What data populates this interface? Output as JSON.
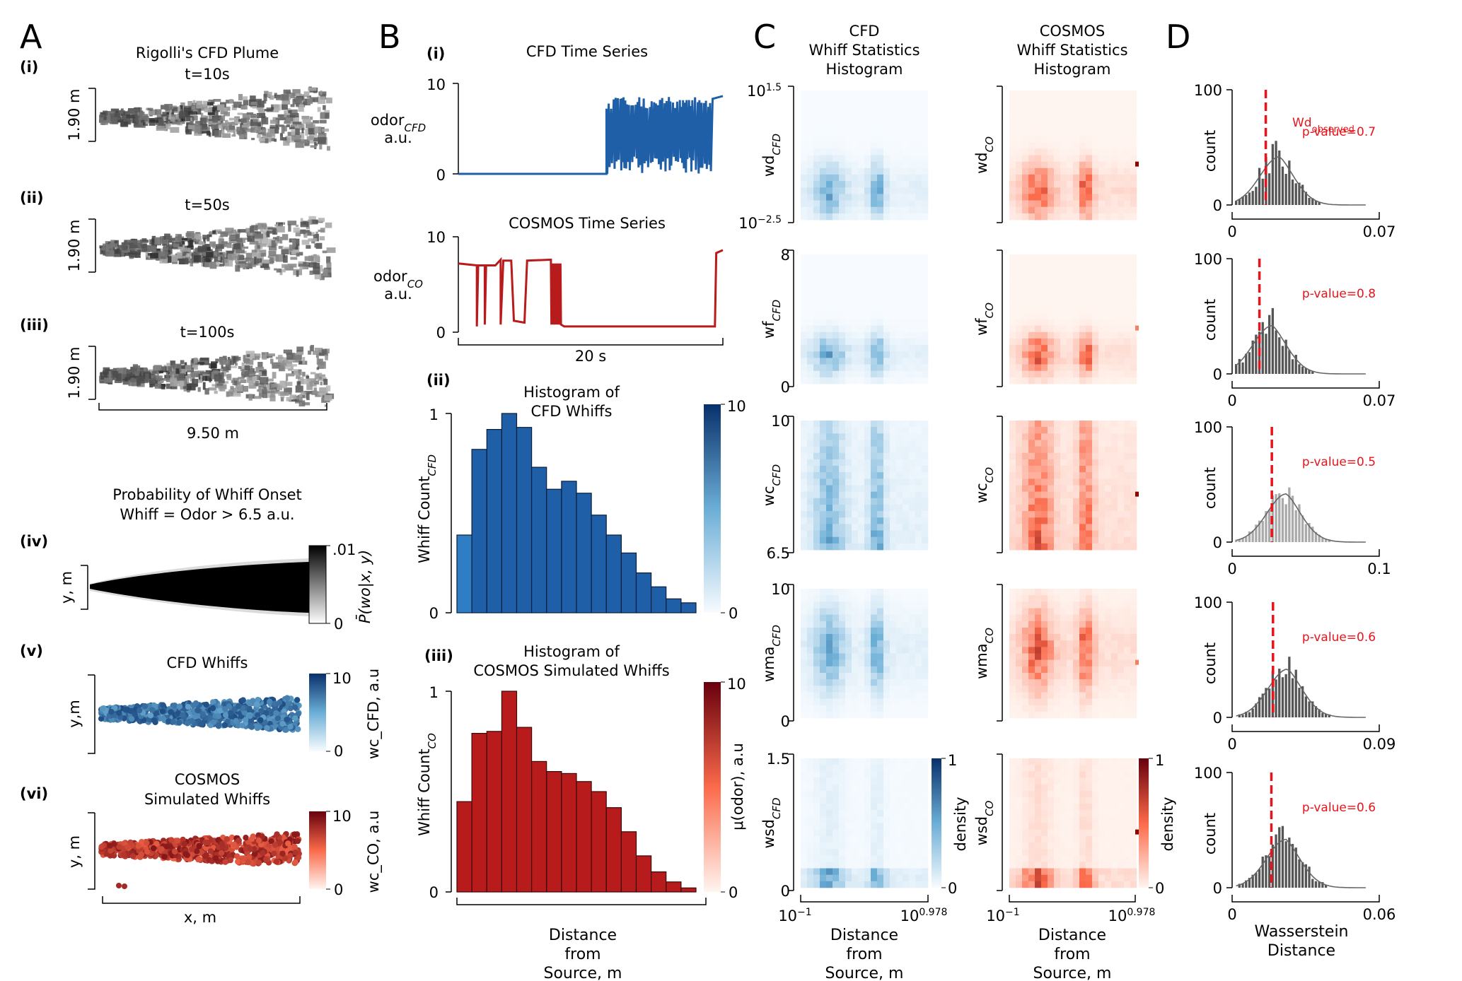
{
  "panel_labels": {
    "A": "A",
    "B": "B",
    "C": "C",
    "D": "D"
  },
  "sub_labels": {
    "i": "(i)",
    "ii": "(ii)",
    "iii": "(iii)",
    "iv": "(iv)",
    "v": "(v)",
    "vi": "(vi)"
  },
  "panel_a": {
    "title": "Rigolli's CFD Plume",
    "snapshots": [
      {
        "label": "(i)",
        "time": "t=10s",
        "ylabel": "1.90 m"
      },
      {
        "label": "(ii)",
        "time": "t=50s",
        "ylabel": "1.90 m"
      },
      {
        "label": "(iii)",
        "time": "t=100s",
        "ylabel": "1.90 m"
      }
    ],
    "x_span": "9.50 m",
    "onset_title_1": "Probability of Whiff Onset",
    "onset_title_2": "Whiff = Odor > 6.5 a.u.",
    "onset_ylabel": "y, m",
    "onset_cbar_max": ".01",
    "onset_cbar_min": "0",
    "onset_cbar_label": "P̄(wo|x, y)",
    "cfd_whiffs_title": "CFD Whiffs",
    "cfd_whiffs_ylabel": "y,m",
    "cfd_cbar_max": "10",
    "cfd_cbar_min": "0",
    "cfd_cbar_label": "wc_CFD, a.u",
    "cosmos_whiffs_title_1": "COSMOS",
    "cosmos_whiffs_title_2": "Simulated Whiffs",
    "cosmos_whiffs_ylabel": "y, m",
    "cosmos_cbar_max": "10",
    "cosmos_cbar_min": "0",
    "cosmos_cbar_label": "wc_CO, a.u",
    "xlabel": "x, m"
  },
  "panel_b": {
    "cfd_ts_title": "CFD Time Series",
    "cfd_ts_ylabel_1": "odor_CFD",
    "cfd_ts_ylabel_2": "a.u.",
    "cfd_ts_ymax": "10",
    "cfd_ts_ymin": "0",
    "cosmos_ts_title": "COSMOS Time Series",
    "cosmos_ts_ylabel_1": "odor_CO",
    "cosmos_ts_ylabel_2": "a.u.",
    "cosmos_ts_ymax": "10",
    "cosmos_ts_ymin": "0",
    "ts_xlabel": "20 s",
    "hist_cfd_title_1": "Histogram of",
    "hist_cfd_title_2": "CFD Whiffs",
    "hist_cfd_ylabel": "Whiff Count_CFD",
    "hist_cfd_cbar_max": "10",
    "hist_cfd_cbar_min": "0",
    "hist_co_title_1": "Histogram of",
    "hist_co_title_2": "COSMOS Simulated Whiffs",
    "hist_co_ylabel": "Whiff Count_CO",
    "hist_co_cbar_max": "10",
    "hist_co_cbar_min": "0",
    "hist_co_cbar_label": "μ(odor), a.u",
    "hist_ymax": "1",
    "hist_ymin": "0",
    "xlabel_1": "Distance",
    "xlabel_2": "from",
    "xlabel_3": "Source, m"
  },
  "panel_c": {
    "cfd_title": [
      "CFD",
      "Whiff Statistics",
      "Histogram"
    ],
    "co_title": [
      "COSMOS",
      "Whiff Statistics",
      "Histogram"
    ],
    "rows": [
      {
        "cfd_label": "wd_CFD",
        "co_label": "wd_CO",
        "ymax": "10^1.5",
        "ymin": "10^−2.5"
      },
      {
        "cfd_label": "wf_CFD",
        "co_label": "wf_CO",
        "ymax": "8",
        "ymin": "0"
      },
      {
        "cfd_label": "wc_CFD",
        "co_label": "wc_CO",
        "ymax": "10",
        "ymin": "6.5"
      },
      {
        "cfd_label": "wma_CFD",
        "co_label": "wma_CO",
        "ymax": "10",
        "ymin": "0"
      },
      {
        "cfd_label": "wsd_CFD",
        "co_label": "wsd_CO",
        "ymax": "1.5",
        "ymin": "0"
      }
    ],
    "x_min": "10^−1",
    "x_max": "10^0.978",
    "density_label": "density",
    "density_max": "1",
    "density_min": "0",
    "xlabel_1": "Distance",
    "xlabel_2": "from",
    "xlabel_3": "Source, m"
  },
  "panel_d": {
    "ylabel": "count",
    "xlabel_1": "Wasserstein",
    "xlabel_2": "Distance",
    "observed_label": "Wd_observed",
    "rows": [
      {
        "xmax": "0.07",
        "ymax": "100",
        "ymin": "0",
        "xmin": "0",
        "pvalue": "p-value=0.7",
        "observed": 0.016,
        "xmax_num": 0.07
      },
      {
        "xmax": "0.07",
        "ymax": "100",
        "ymin": "0",
        "xmin": "0",
        "pvalue": "p-value=0.8",
        "observed": 0.013,
        "xmax_num": 0.07
      },
      {
        "xmax": "0.1",
        "ymax": "100",
        "ymin": "0",
        "xmin": "0",
        "pvalue": "p-value=0.5",
        "observed": 0.027,
        "xmax_num": 0.1
      },
      {
        "xmax": "0.09",
        "ymax": "100",
        "ymin": "0",
        "xmin": "0",
        "pvalue": "p-value=0.6",
        "observed": 0.025,
        "xmax_num": 0.09
      },
      {
        "xmax": "0.06",
        "ymax": "100",
        "ymin": "0",
        "xmin": "0",
        "pvalue": "p-value=0.6",
        "observed": 0.016,
        "xmax_num": 0.06
      }
    ]
  },
  "colors": {
    "cfd_blue": "#1f5fa8",
    "cfd_blue_dark": "#08306b",
    "co_red": "#b81b1b",
    "co_red_dark": "#67000d",
    "observed_red": "#e8141b",
    "gray_bar": "#555555",
    "gray_light": "#aaaaaa"
  },
  "chart_data": [
    {
      "type": "bar",
      "title": "Histogram of CFD Whiffs",
      "ylabel": "Whiff Count CFD (normalized)",
      "xlabel": "Distance from Source, m",
      "ylim": [
        0,
        1
      ],
      "values": [
        0.39,
        0.82,
        0.92,
        1.0,
        0.93,
        0.73,
        0.62,
        0.66,
        0.6,
        0.49,
        0.39,
        0.3,
        0.2,
        0.13,
        0.07,
        0.05
      ],
      "mean_odor": [
        5.2,
        8.0,
        8.3,
        8.6,
        8.4,
        8.2,
        8.1,
        8.0,
        8.0,
        8.0,
        7.9,
        8.0,
        7.9,
        7.8,
        7.8,
        7.7
      ],
      "colorbar": {
        "label": "",
        "range": [
          0,
          10
        ]
      }
    },
    {
      "type": "bar",
      "title": "Histogram of COSMOS Simulated Whiffs",
      "ylabel": "Whiff Count CO (normalized)",
      "xlabel": "Distance from Source, m",
      "ylim": [
        0,
        1
      ],
      "values": [
        0.45,
        0.79,
        0.8,
        1.0,
        0.82,
        0.65,
        0.6,
        0.59,
        0.55,
        0.5,
        0.42,
        0.3,
        0.18,
        0.1,
        0.05,
        0.02
      ],
      "mean_odor": [
        8.5,
        8.6,
        8.6,
        8.7,
        8.6,
        8.6,
        8.6,
        8.6,
        8.6,
        8.6,
        8.6,
        8.6,
        8.6,
        8.6,
        8.6,
        8.6
      ],
      "colorbar": {
        "label": "μ(odor), a.u",
        "range": [
          0,
          10
        ]
      }
    },
    {
      "type": "line",
      "title": "CFD Time Series",
      "ylabel": "odor CFD a.u.",
      "xlabel": "20 s",
      "ylim": [
        0,
        10
      ],
      "segments": [
        {
          "x": [
            0,
            0.56
          ],
          "y": [
            0,
            0
          ]
        },
        {
          "x": [
            0.56,
            1.0
          ],
          "y_range": [
            0,
            10
          ],
          "note": "rapid fluctuations between 0 and ~8, rising to ~8.5 at end"
        }
      ]
    },
    {
      "type": "line",
      "title": "COSMOS Time Series",
      "ylabel": "odor CO a.u.",
      "xlabel": "20 s",
      "ylim": [
        0,
        10
      ],
      "segments": [
        {
          "x": [
            0,
            0.28
          ],
          "y": [
            7,
            7
          ]
        },
        {
          "x": [
            0.28,
            0.52
          ],
          "y": [
            7.5,
            7.5
          ]
        },
        {
          "x": [
            0.52,
            0.58
          ],
          "y_range": [
            0,
            7.5
          ]
        },
        {
          "x": [
            0.58,
            0.98
          ],
          "y": [
            0.6,
            0.6
          ]
        },
        {
          "x": [
            0.98,
            1.0
          ],
          "y": [
            8.5,
            8.5
          ]
        }
      ]
    },
    {
      "type": "heatmap",
      "title": "Whiff Statistics Histograms (CFD vs COSMOS)",
      "rows": [
        "wd",
        "wf",
        "wc",
        "wma",
        "wsd"
      ],
      "xlabel": "Distance from Source, m",
      "x_range": [
        "10^-1",
        "10^0.978"
      ],
      "colorbar": {
        "label": "density",
        "range": [
          0,
          1
        ]
      }
    },
    {
      "type": "bar",
      "title": "Wasserstein Distance null distributions",
      "xlabel": "Wasserstein Distance",
      "ylabel": "count",
      "ylim": [
        0,
        100
      ],
      "series": [
        {
          "name": "wd",
          "xlim": [
            0,
            0.07
          ],
          "observed": 0.016,
          "pvalue": 0.7
        },
        {
          "name": "wf",
          "xlim": [
            0,
            0.07
          ],
          "observed": 0.013,
          "pvalue": 0.8
        },
        {
          "name": "wc",
          "xlim": [
            0,
            0.1
          ],
          "observed": 0.027,
          "pvalue": 0.5
        },
        {
          "name": "wma",
          "xlim": [
            0,
            0.09
          ],
          "observed": 0.025,
          "pvalue": 0.6
        },
        {
          "name": "wsd",
          "xlim": [
            0,
            0.06
          ],
          "observed": 0.016,
          "pvalue": 0.6
        }
      ]
    }
  ]
}
